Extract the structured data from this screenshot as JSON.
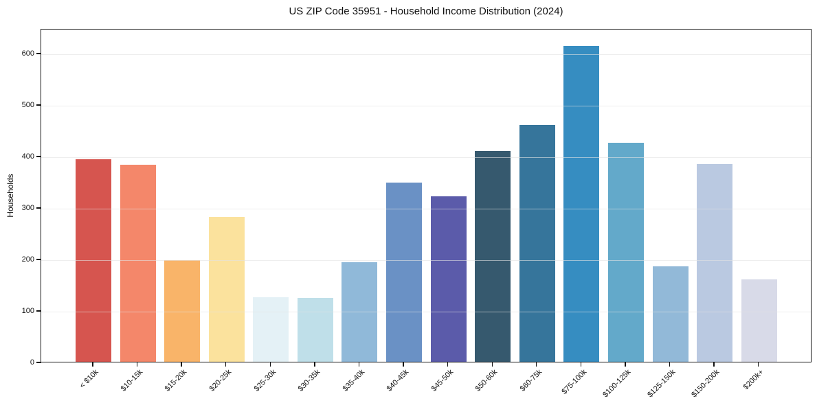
{
  "chart_data": {
    "type": "bar",
    "title": "US ZIP Code 35951 - Household Income Distribution (2024)",
    "xlabel": "",
    "ylabel": "Households",
    "categories": [
      "< $10k",
      "$10-15k",
      "$15-20k",
      "$20-25k",
      "$25-30k",
      "$30-35k",
      "$35-40k",
      "$40-45k",
      "$45-50k",
      "$50-60k",
      "$60-75k",
      "$75-100k",
      "$100-125k",
      "$125-150k",
      "$150-200k",
      "$200k+"
    ],
    "values": [
      394,
      383,
      198,
      282,
      126,
      124,
      193,
      348,
      321,
      410,
      460,
      614,
      425,
      185,
      384,
      160
    ],
    "bar_colors": [
      "#d6554f",
      "#f4876a",
      "#f9b469",
      "#fbe29d",
      "#e4f1f6",
      "#bfdfe9",
      "#90b9d9",
      "#6a91c5",
      "#5b5baa",
      "#36596e",
      "#36759b",
      "#368dc1",
      "#63a9ca",
      "#92b9d8",
      "#bac9e1",
      "#d8dae8"
    ],
    "y_ticks": [
      0,
      100,
      200,
      300,
      400,
      500,
      600
    ],
    "ylim": [
      0,
      648
    ],
    "grid": true,
    "legend": false,
    "axis_color": "#111111",
    "gridline_color": "#e2e2e2"
  }
}
